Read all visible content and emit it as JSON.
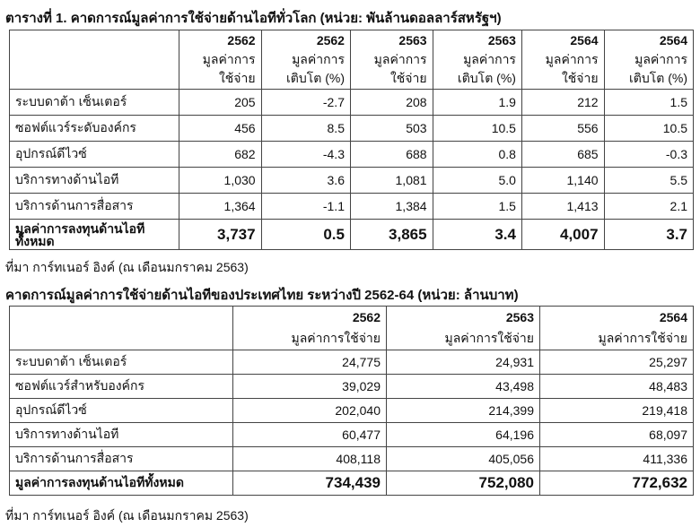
{
  "table1": {
    "title": "ตารางที่ 1. คาดการณ์มูลค่าการใช้จ่ายด้านไอทีทั่วโลก (หน่วย: พันล้านดอลลาร์สหรัฐฯ)",
    "headers": [
      {
        "year": "2562",
        "l1": "มูลค่าการ",
        "l2": "ใช้จ่าย"
      },
      {
        "year": "2562",
        "l1": "มูลค่าการ",
        "l2": "เติบโต (%)"
      },
      {
        "year": "2563",
        "l1": "มูลค่าการ",
        "l2": "ใช้จ่าย"
      },
      {
        "year": "2563",
        "l1": "มูลค่าการ",
        "l2": "เติบโต (%)"
      },
      {
        "year": "2564",
        "l1": "มูลค่าการ",
        "l2": "ใช้จ่าย"
      },
      {
        "year": "2564",
        "l1": "มูลค่าการ",
        "l2": "เติบโต (%)"
      }
    ],
    "rows": [
      {
        "label": "ระบบดาต้า เซ็นเตอร์",
        "v": [
          "205",
          "-2.7",
          "208",
          "1.9",
          "212",
          "1.5"
        ]
      },
      {
        "label": "ซอฟต์แวร์ระดับองค์กร",
        "v": [
          "456",
          "8.5",
          "503",
          "10.5",
          "556",
          "10.5"
        ]
      },
      {
        "label": "อุปกรณ์ดีไวซ์",
        "v": [
          "682",
          "-4.3",
          "688",
          "0.8",
          "685",
          "-0.3"
        ]
      },
      {
        "label": "บริการทางด้านไอที",
        "v": [
          "1,030",
          "3.6",
          "1,081",
          "5.0",
          "1,140",
          "5.5"
        ]
      },
      {
        "label": "บริการด้านการสื่อสาร",
        "v": [
          "1,364",
          "-1.1",
          "1,384",
          "1.5",
          "1,413",
          "2.1"
        ]
      }
    ],
    "total": {
      "label": "มูลค่าการลงทุนด้านไอทีทั้งหมด",
      "v": [
        "3,737",
        "0.5",
        "3,865",
        "3.4",
        "4,007",
        "3.7"
      ]
    },
    "source": "ที่มา การ์ทเนอร์ อิงค์ (ณ เดือนมกราคม 2563)"
  },
  "table2": {
    "title": "คาดการณ์มูลค่าการใช้จ่ายด้านไอทีของประเทศไทย ระหว่างปี 2562-64 (หน่วย: ล้านบาท)",
    "headers": [
      {
        "year": "2562",
        "l1": "มูลค่าการใช้จ่าย"
      },
      {
        "year": "2563",
        "l1": "มูลค่าการใช้จ่าย"
      },
      {
        "year": "2564",
        "l1": "มูลค่าการใช้จ่าย"
      }
    ],
    "rows": [
      {
        "label": "ระบบดาต้า เซ็นเตอร์",
        "v": [
          "24,775",
          "24,931",
          "25,297"
        ]
      },
      {
        "label": "ซอฟต์แวร์สำหรับองค์กร",
        "v": [
          "39,029",
          "43,498",
          "48,483"
        ]
      },
      {
        "label": "อุปกรณ์ดีไวซ์",
        "v": [
          "202,040",
          "214,399",
          "219,418"
        ]
      },
      {
        "label": "บริการทางด้านไอที",
        "v": [
          "60,477",
          "64,196",
          "68,097"
        ]
      },
      {
        "label": "บริการด้านการสื่อสาร",
        "v": [
          "408,118",
          "405,056",
          "411,336"
        ]
      }
    ],
    "total": {
      "label": "มูลค่าการลงทุนด้านไอทีทั้งหมด",
      "v": [
        "734,439",
        "752,080",
        "772,632"
      ]
    },
    "source": "ที่มา การ์ทเนอร์ อิงค์ (ณ เดือนมกราคม 2563)"
  }
}
